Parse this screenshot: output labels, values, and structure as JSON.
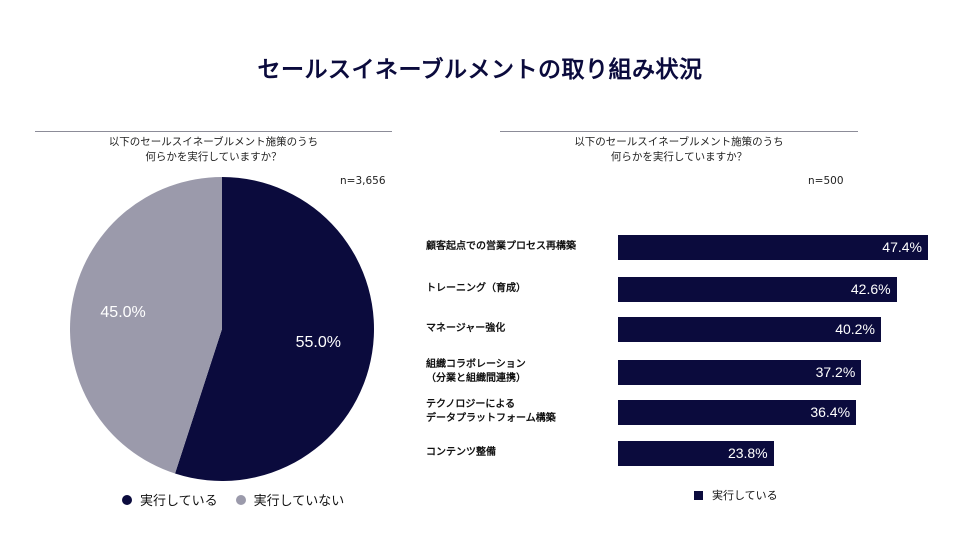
{
  "title": "セールスイネーブルメントの取り組み状況",
  "colors": {
    "navy": "#0b0b3d",
    "gray": "#9b9aab"
  },
  "left_panel": {
    "question_line1": "以下のセールスイネーブルメント施策のうち",
    "question_line2": "何らかを実行していますか？",
    "n": "n=3,656",
    "legend": [
      "実行している",
      "実行していない"
    ]
  },
  "right_panel": {
    "question_line1": "以下のセールスイネーブルメント施策のうち",
    "question_line2": "何らかを実行していますか？",
    "n": "n=500",
    "legend": "実行している"
  },
  "chart_data": [
    {
      "type": "pie",
      "labels": [
        "実行している",
        "実行していない"
      ],
      "values": [
        55.0,
        45.0
      ],
      "value_labels": [
        "55.0%",
        "45.0%"
      ],
      "colors": [
        "#0b0b3d",
        "#9b9aab"
      ],
      "legend_position": "bottom"
    },
    {
      "type": "bar",
      "orientation": "horizontal",
      "categories": [
        [
          "顧客起点での営業プロセス再構築"
        ],
        [
          "トレーニング（育成）"
        ],
        [
          "マネージャー強化"
        ],
        [
          "組織コラボレーション",
          "（分業と組織間連携）"
        ],
        [
          "テクノロジーによる",
          "データプラットフォーム構築"
        ],
        [
          "コンテンツ整備"
        ]
      ],
      "series": [
        {
          "name": "実行している",
          "values": [
            47.4,
            42.6,
            40.2,
            37.2,
            36.4,
            23.8
          ]
        }
      ],
      "value_labels": [
        "47.4%",
        "42.6%",
        "40.2%",
        "37.2%",
        "36.4%",
        "23.8%"
      ],
      "legend_position": "bottom"
    }
  ]
}
